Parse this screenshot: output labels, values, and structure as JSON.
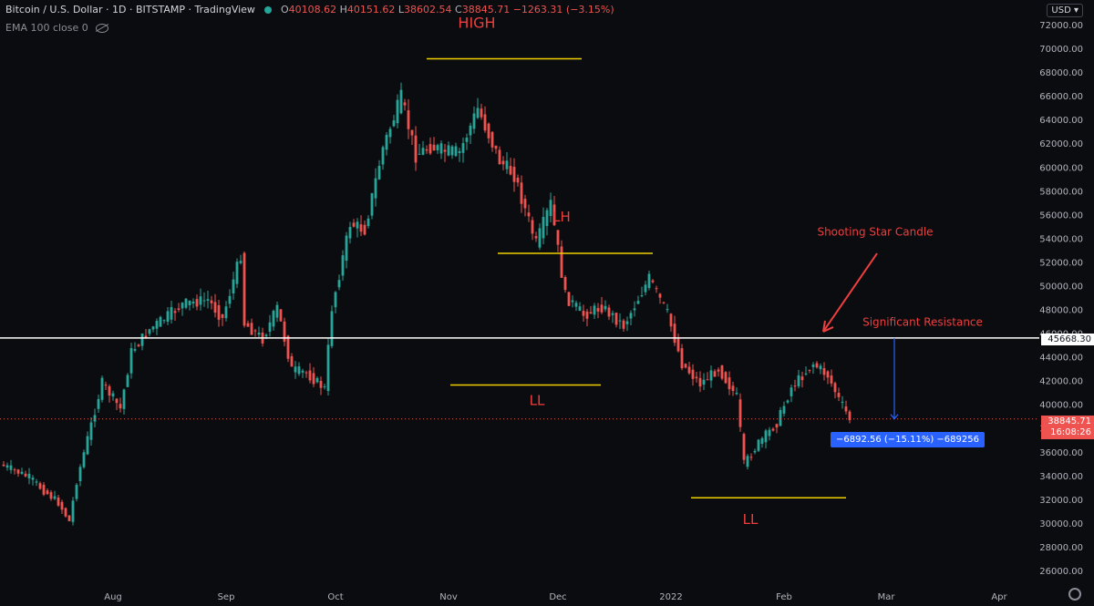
{
  "header": {
    "symbol": "Bitcoin / U.S. Dollar · 1D · BITSTAMP · TradingView",
    "ohlc": {
      "open_label": "O",
      "open": "40108.62",
      "high_label": "H",
      "high": "40151.62",
      "low_label": "L",
      "low": "38602.54",
      "close_label": "C",
      "close": "38845.71",
      "change": "−1263.31 (−3.15%)"
    },
    "indicator": "EMA 100 close 0"
  },
  "currency": "USD",
  "colors": {
    "background": "#0b0c0f",
    "up": "#26a69a",
    "down": "#ef5350",
    "annotation_line": "#f0d000",
    "annotation_text": "#ef3e3e",
    "resistance": "#ffffff",
    "measure": "#2962ff"
  },
  "annotations": {
    "high": "HIGH",
    "lh": "LH",
    "ll_1": "LL",
    "ll_2": "LL",
    "shooting_star": "Shooting Star Candle",
    "resistance": "Significant Resistance",
    "resistance_price": "45668.30",
    "measure": "−6892.56 (−15.11%) −689256",
    "last_price": "38845.71",
    "countdown": "16:08:26"
  },
  "chart_data": {
    "type": "candlestick",
    "title": "Bitcoin / U.S. Dollar · 1D · BITSTAMP",
    "x_ticks": [
      "Aug",
      "Sep",
      "Oct",
      "Nov",
      "Dec",
      "2022",
      "Feb",
      "Mar",
      "Apr"
    ],
    "x_tick_dates": [
      "2021-08-01",
      "2021-09-01",
      "2021-10-01",
      "2021-11-01",
      "2021-12-01",
      "2022-01-01",
      "2022-02-01",
      "2022-03-01",
      "2022-04-01"
    ],
    "y_ticks": [
      26000,
      28000,
      30000,
      32000,
      34000,
      36000,
      38000,
      40000,
      42000,
      44000,
      46000,
      48000,
      50000,
      52000,
      54000,
      56000,
      58000,
      60000,
      62000,
      64000,
      66000,
      68000,
      70000,
      72000
    ],
    "ylim": [
      25000,
      73000
    ],
    "xlim": [
      "2021-07-01",
      "2022-04-12"
    ],
    "series": [
      {
        "name": "BTCUSD",
        "points": [
          {
            "x": "2021-07-02",
            "close": 35000
          },
          {
            "x": "2021-07-06",
            "close": 34500
          },
          {
            "x": "2021-07-10",
            "close": 33900
          },
          {
            "x": "2021-07-14",
            "close": 32800
          },
          {
            "x": "2021-07-18",
            "close": 31800
          },
          {
            "x": "2021-07-21",
            "close": 30200
          },
          {
            "x": "2021-07-23",
            "close": 33600
          },
          {
            "x": "2021-07-26",
            "close": 37200
          },
          {
            "x": "2021-07-30",
            "close": 41900
          },
          {
            "x": "2021-08-04",
            "close": 39700
          },
          {
            "x": "2021-08-07",
            "close": 44500
          },
          {
            "x": "2021-08-12",
            "close": 46400
          },
          {
            "x": "2021-08-16",
            "close": 47300
          },
          {
            "x": "2021-08-21",
            "close": 48500
          },
          {
            "x": "2021-08-28",
            "close": 48900
          },
          {
            "x": "2021-09-01",
            "close": 47300
          },
          {
            "x": "2021-09-06",
            "close": 52700
          },
          {
            "x": "2021-09-07",
            "close": 46900
          },
          {
            "x": "2021-09-12",
            "close": 45600
          },
          {
            "x": "2021-09-16",
            "close": 48200
          },
          {
            "x": "2021-09-20",
            "close": 43000
          },
          {
            "x": "2021-09-24",
            "close": 42700
          },
          {
            "x": "2021-09-29",
            "close": 41400
          },
          {
            "x": "2021-10-01",
            "close": 48200
          },
          {
            "x": "2021-10-06",
            "close": 55300
          },
          {
            "x": "2021-10-10",
            "close": 54800
          },
          {
            "x": "2021-10-15",
            "close": 61700
          },
          {
            "x": "2021-10-20",
            "close": 65900
          },
          {
            "x": "2021-10-24",
            "close": 61100
          },
          {
            "x": "2021-10-28",
            "close": 61800
          },
          {
            "x": "2021-11-01",
            "close": 61400
          },
          {
            "x": "2021-11-05",
            "close": 61300
          },
          {
            "x": "2021-11-10",
            "close": 65000
          },
          {
            "x": "2021-11-16",
            "close": 60600
          },
          {
            "x": "2021-11-20",
            "close": 59400
          },
          {
            "x": "2021-11-26",
            "close": 53600
          },
          {
            "x": "2021-11-30",
            "close": 57000
          },
          {
            "x": "2021-12-04",
            "close": 49200
          },
          {
            "x": "2021-12-09",
            "close": 47600
          },
          {
            "x": "2021-12-14",
            "close": 48300
          },
          {
            "x": "2021-12-20",
            "close": 46700
          },
          {
            "x": "2021-12-27",
            "close": 50700
          },
          {
            "x": "2022-01-01",
            "close": 47700
          },
          {
            "x": "2022-01-05",
            "close": 43500
          },
          {
            "x": "2022-01-10",
            "close": 41800
          },
          {
            "x": "2022-01-15",
            "close": 43100
          },
          {
            "x": "2022-01-20",
            "close": 40700
          },
          {
            "x": "2022-01-22",
            "close": 35000
          },
          {
            "x": "2022-01-26",
            "close": 36800
          },
          {
            "x": "2022-01-31",
            "close": 38500
          },
          {
            "x": "2022-02-04",
            "close": 41500
          },
          {
            "x": "2022-02-10",
            "close": 43500
          },
          {
            "x": "2022-02-14",
            "close": 42500
          },
          {
            "x": "2022-02-17",
            "close": 40500
          },
          {
            "x": "2022-02-20",
            "close": 38845.71
          }
        ]
      }
    ],
    "highlight_points": {
      "high": {
        "x": "2021-11-10",
        "price": 69000
      },
      "lh": {
        "x": "2021-12-27",
        "price": 52100
      },
      "ll_1": {
        "x": "2021-12-04",
        "price": 42000
      },
      "ll_2": {
        "x": "2022-01-24",
        "price": 33000
      }
    },
    "horizontal_levels": {
      "resistance": 45668.3,
      "last_price": 38845.71
    },
    "grid": false,
    "legend": "top-left"
  }
}
